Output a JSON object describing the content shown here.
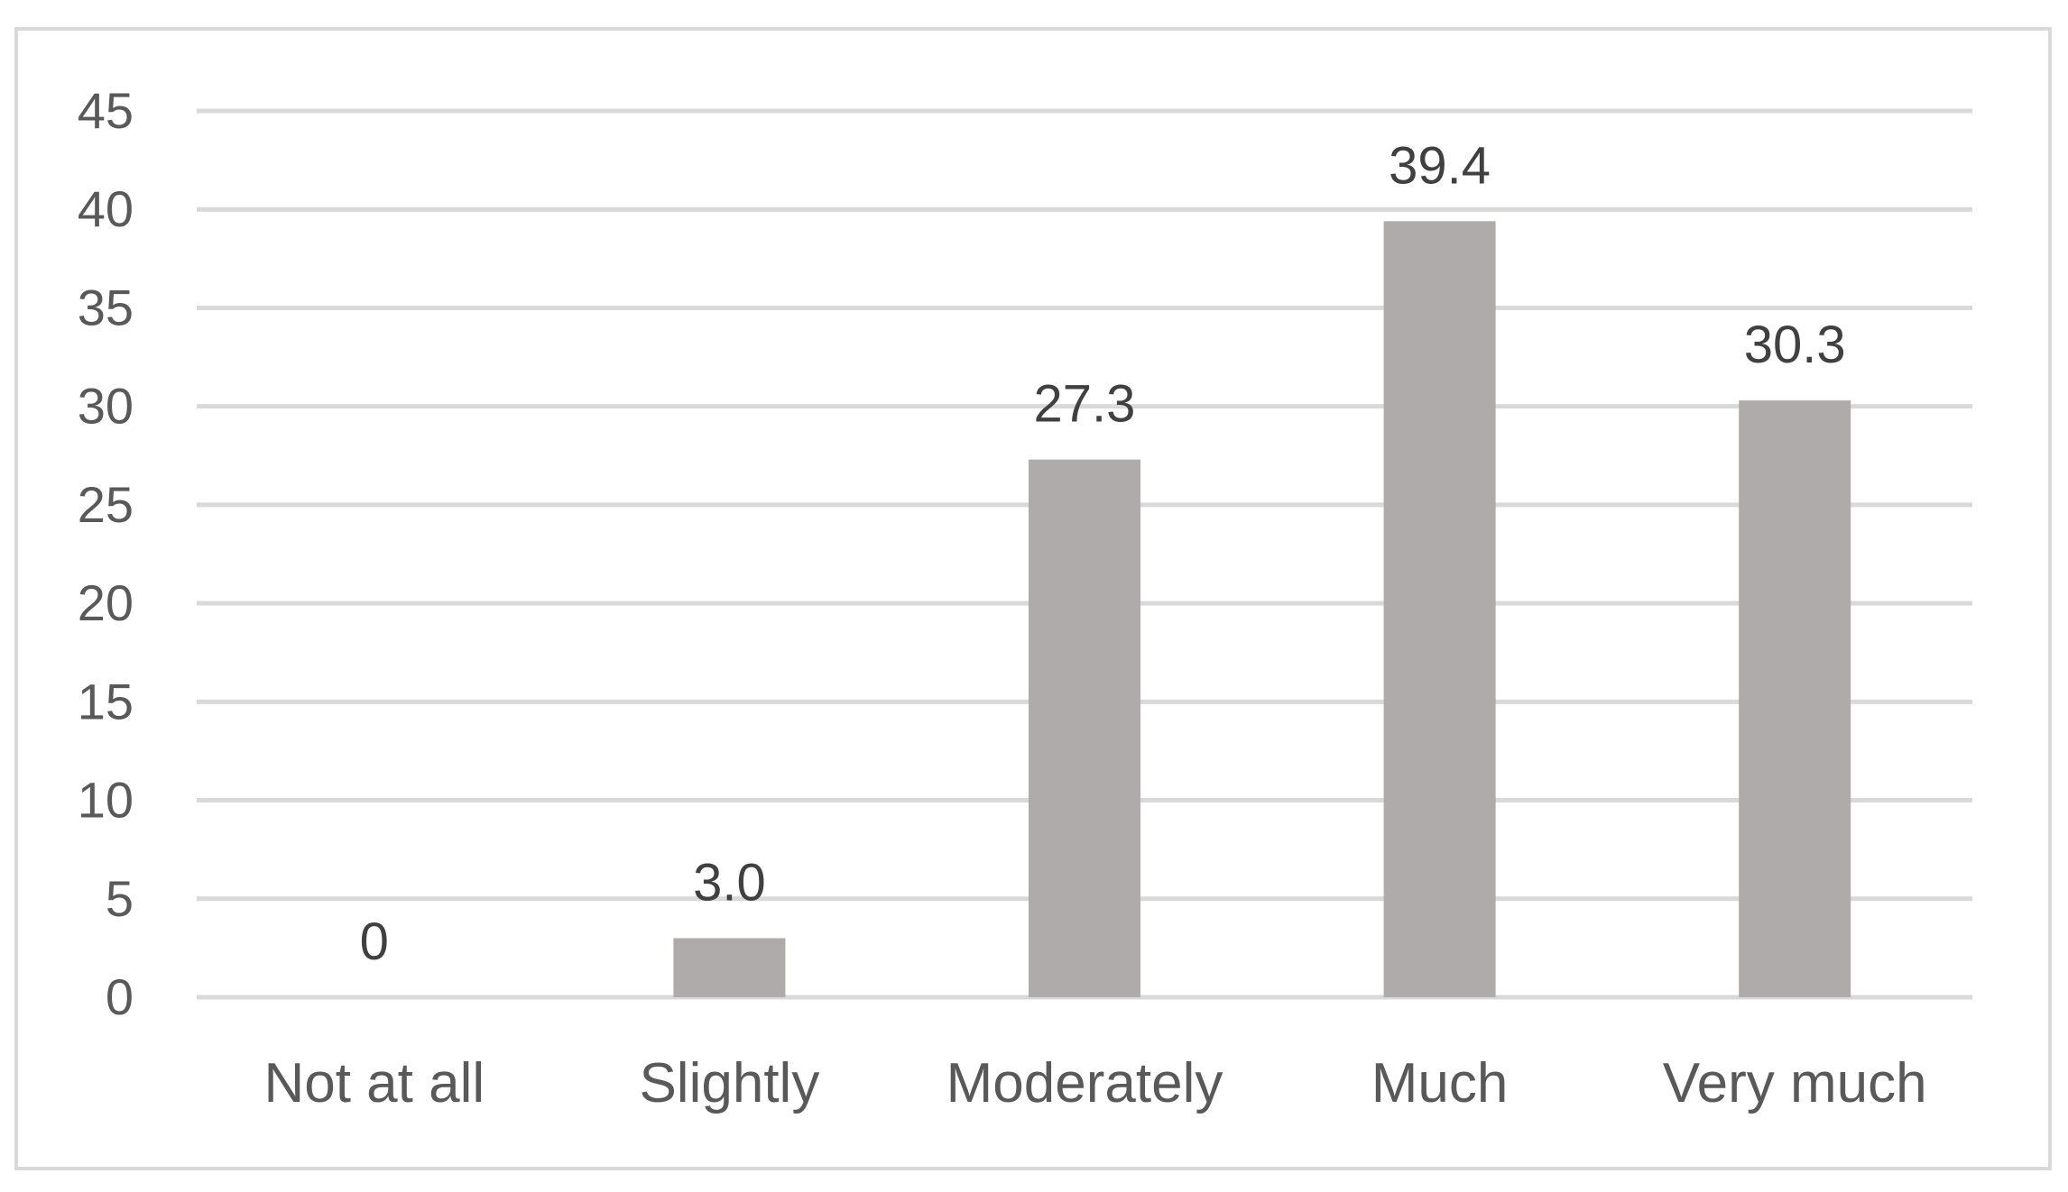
{
  "chart_data": {
    "type": "bar",
    "title": "",
    "xlabel": "",
    "ylabel": "",
    "categories": [
      "Not at all",
      "Slightly",
      "Moderately",
      "Much",
      "Very much"
    ],
    "values": [
      0,
      3.0,
      27.3,
      39.4,
      30.3
    ],
    "data_labels": [
      "0",
      "3.0",
      "27.3",
      "39.4",
      "30.3"
    ],
    "ylim": [
      0,
      45
    ],
    "yticks": [
      0,
      5,
      10,
      15,
      20,
      25,
      30,
      35,
      40,
      45
    ],
    "grid": true,
    "legend": "none",
    "colors": {
      "bar": "#afabab",
      "grid": "#d9d9d9",
      "text": "#595959",
      "label": "#404040",
      "border": "#d9d9d9"
    }
  }
}
